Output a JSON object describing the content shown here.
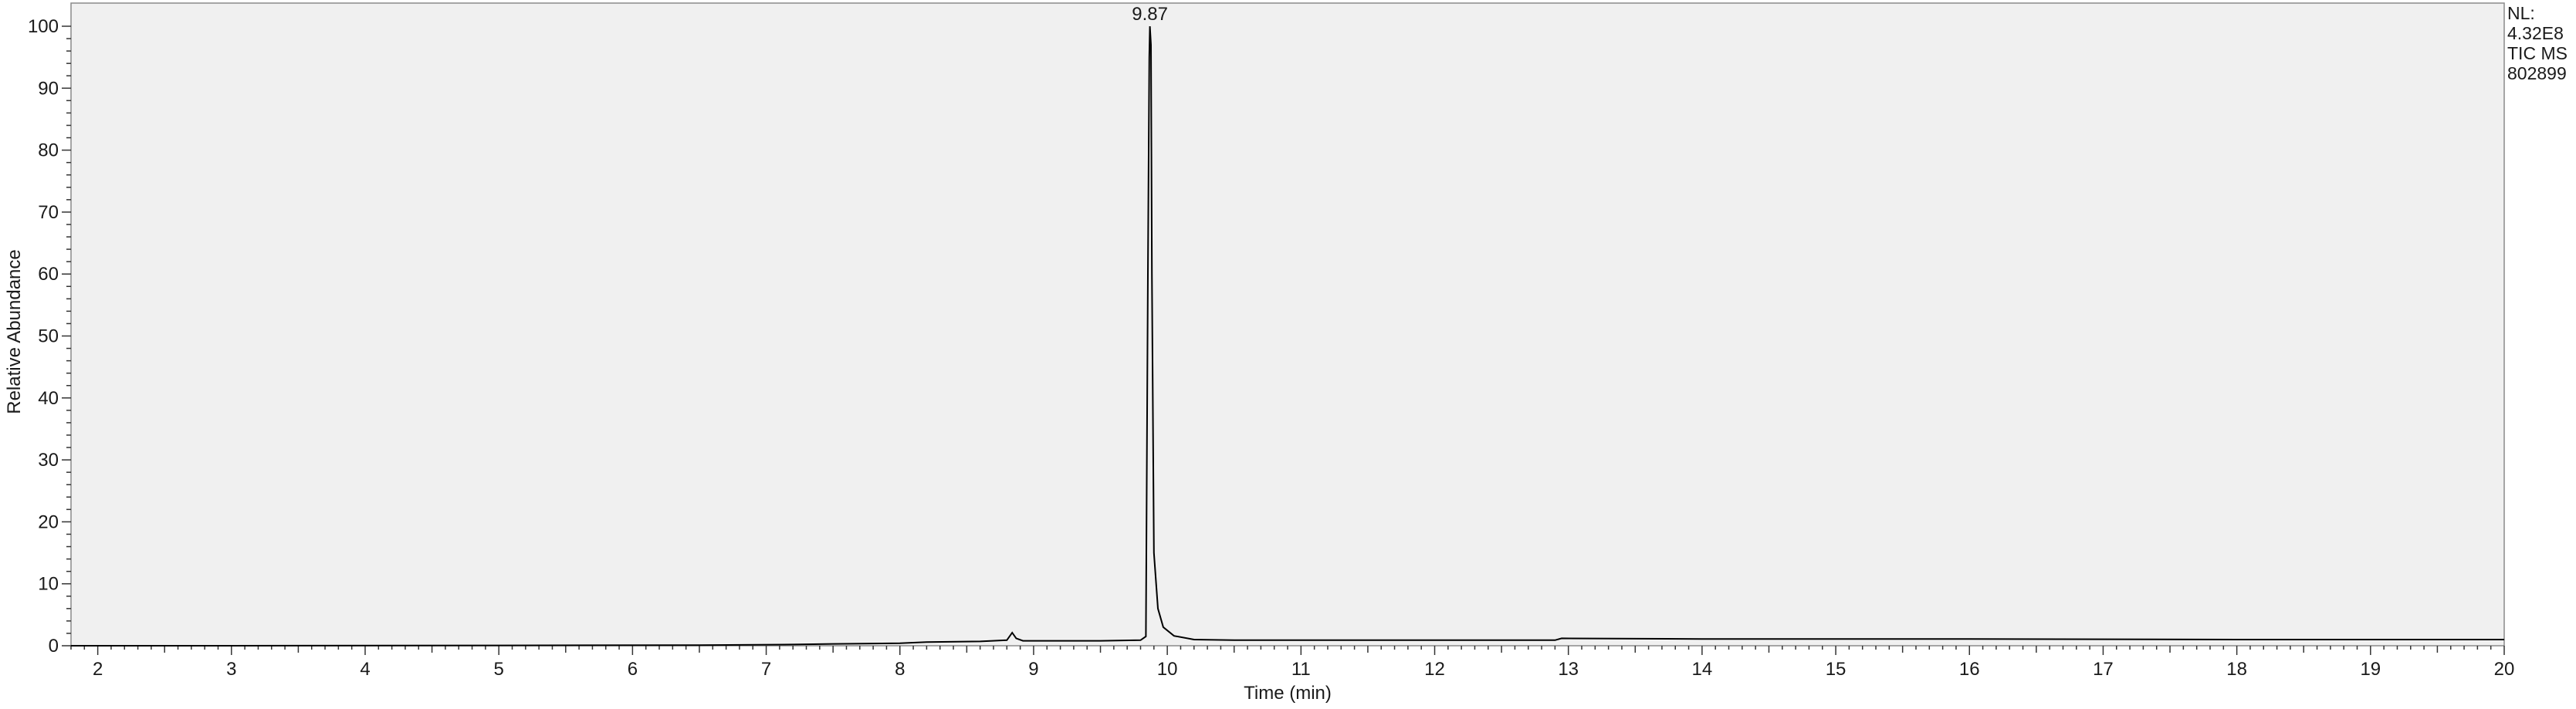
{
  "info": {
    "nl_label": "NL:",
    "nl_value": "4.32E8",
    "scan_filter": "TIC  MS",
    "sample_id": "802899"
  },
  "chart_data": {
    "type": "line",
    "title": "",
    "xlabel": "Time (min)",
    "ylabel": "Relative Abundance",
    "xlim": [
      1.8,
      20
    ],
    "ylim": [
      0,
      100
    ],
    "x_major_ticks": [
      2,
      3,
      4,
      5,
      6,
      7,
      8,
      9,
      10,
      11,
      12,
      13,
      14,
      15,
      16,
      17,
      18,
      19,
      20
    ],
    "y_major_ticks": [
      0,
      10,
      20,
      30,
      40,
      50,
      60,
      70,
      80,
      90,
      100
    ],
    "grid": false,
    "background_color": "#f0f0f0",
    "line_color": "#000000",
    "annotations": [
      {
        "x": 9.87,
        "y": 100,
        "text": "9.87"
      }
    ],
    "series": [
      {
        "values": [
          [
            1.8,
            0.0
          ],
          [
            3.0,
            0.0
          ],
          [
            5.0,
            0.05
          ],
          [
            6.5,
            0.1
          ],
          [
            7.2,
            0.2
          ],
          [
            7.5,
            0.3
          ],
          [
            8.0,
            0.4
          ],
          [
            8.2,
            0.6
          ],
          [
            8.6,
            0.7
          ],
          [
            8.8,
            0.9
          ],
          [
            8.84,
            2.1
          ],
          [
            8.87,
            1.2
          ],
          [
            8.92,
            0.8
          ],
          [
            9.5,
            0.8
          ],
          [
            9.8,
            0.9
          ],
          [
            9.84,
            1.5
          ],
          [
            9.855,
            60
          ],
          [
            9.865,
            95
          ],
          [
            9.87,
            100
          ],
          [
            9.878,
            97
          ],
          [
            9.885,
            60
          ],
          [
            9.9,
            15
          ],
          [
            9.93,
            6
          ],
          [
            9.97,
            3
          ],
          [
            10.05,
            1.6
          ],
          [
            10.2,
            1.0
          ],
          [
            10.5,
            0.9
          ],
          [
            12.0,
            0.9
          ],
          [
            12.9,
            0.9
          ],
          [
            12.95,
            1.2
          ],
          [
            14.0,
            1.1
          ],
          [
            16.0,
            1.1
          ],
          [
            18.0,
            1.0
          ],
          [
            20.0,
            1.0
          ]
        ]
      }
    ]
  }
}
